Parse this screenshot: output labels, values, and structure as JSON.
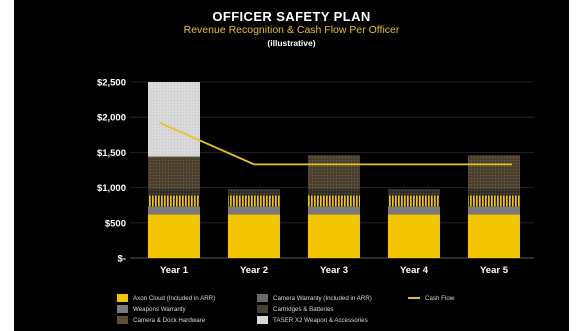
{
  "header": {
    "title": "OFFICER SAFETY PLAN",
    "subtitle": "Revenue Recognition & Cash Flow Per Officer",
    "note": "(illustrative)"
  },
  "colors": {
    "background": "#000000",
    "axon_cloud": "#f2c500",
    "weapons_warranty": "#7a7a7a",
    "camera_dock_hardware": "#5e4f34",
    "camera_warranty": "#6a6a6a",
    "cartridges_batteries": "#4a4030",
    "taser_x2": "#d8d8d8",
    "cash_flow": "#e6c229",
    "title_text": "#ffffff",
    "subtitle_text": "#e6c229"
  },
  "chart_data": {
    "type": "bar",
    "stacked": true,
    "categories": [
      "Year 1",
      "Year 2",
      "Year 3",
      "Year 4",
      "Year 5"
    ],
    "yticks": [
      "$-",
      "$500",
      "$1,000",
      "$1,500",
      "$2,000",
      "$2,500"
    ],
    "ylim": [
      0,
      2500
    ],
    "series": [
      {
        "name": "Axon Cloud (Included in ARR)",
        "key": "axon_cloud",
        "values": [
          620,
          620,
          620,
          620,
          620
        ]
      },
      {
        "name": "Weapons Warranty",
        "key": "weapons_warranty",
        "values": [
          110,
          110,
          110,
          110,
          110
        ]
      },
      {
        "name": "Camera Warranty (Included in ARR)",
        "key": "camera_warranty",
        "values": [
          160,
          160,
          160,
          160,
          160
        ]
      },
      {
        "name": "Cartridges & Batteries",
        "key": "cartridges_batteries",
        "values": [
          90,
          90,
          90,
          90,
          90
        ]
      },
      {
        "name": "Camera & Dock Hardware",
        "key": "camera_dock_hardware",
        "values": [
          460,
          0,
          480,
          0,
          480
        ]
      },
      {
        "name": "TASER X2 Weapon & Accessories",
        "key": "taser_x2",
        "values": [
          1060,
          0,
          0,
          0,
          0
        ]
      }
    ],
    "line": {
      "name": "Cash Flow",
      "key": "cash_flow",
      "values": [
        1920,
        1330,
        1330,
        1330,
        1330
      ]
    },
    "grid": true,
    "legend_position": "bottom"
  },
  "legend": [
    {
      "label": "Axon Cloud (Included in ARR)",
      "key": "axon_cloud",
      "kind": "box"
    },
    {
      "label": "Camera Warranty (Included in ARR)",
      "key": "camera_warranty",
      "kind": "box"
    },
    {
      "label": "Cash Flow",
      "key": "cash_flow",
      "kind": "line"
    },
    {
      "label": "Weapons Warranty",
      "key": "weapons_warranty",
      "kind": "box"
    },
    {
      "label": "Cartridges & Batteries",
      "key": "cartridges_batteries",
      "kind": "box"
    },
    {
      "label": "Camera & Dock Hardware",
      "key": "camera_dock_hardware",
      "kind": "box"
    },
    {
      "label": "TASER X2 Weapon & Accessories",
      "key": "taser_x2",
      "kind": "box"
    }
  ]
}
